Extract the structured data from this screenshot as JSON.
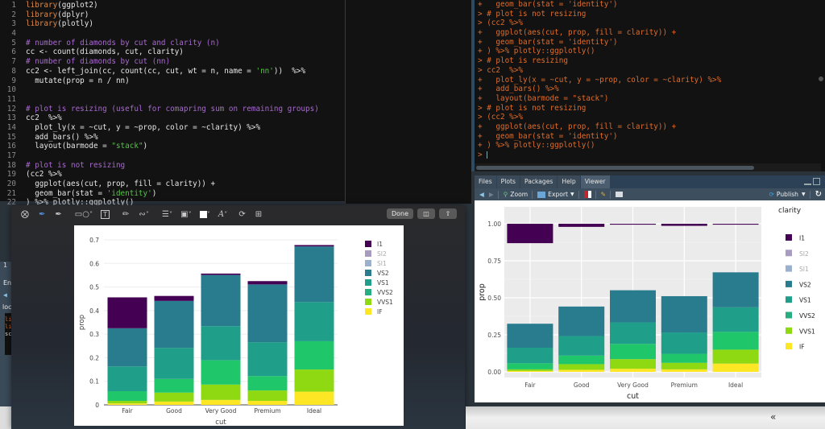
{
  "editor": {
    "lines": [
      {
        "n": "1",
        "parts": [
          [
            "fn",
            "library"
          ],
          [
            "",
            "(ggplot2)"
          ]
        ]
      },
      {
        "n": "2",
        "parts": [
          [
            "fn",
            "library"
          ],
          [
            "",
            "(dplyr)"
          ]
        ]
      },
      {
        "n": "3",
        "parts": [
          [
            "fn",
            "library"
          ],
          [
            "",
            "(plotly)"
          ]
        ]
      },
      {
        "n": "4",
        "parts": []
      },
      {
        "n": "5",
        "parts": [
          [
            "cm",
            "# number of diamonds by cut and clarity (n)"
          ]
        ]
      },
      {
        "n": "6",
        "parts": [
          [
            "",
            "cc <- count(diamonds, cut, clarity)"
          ]
        ]
      },
      {
        "n": "7",
        "parts": [
          [
            "cm",
            "# number of diamonds by cut (nn)"
          ]
        ]
      },
      {
        "n": "8",
        "parts": [
          [
            "",
            "cc2 <- left_join(cc, count(cc, cut, wt = n, name = "
          ],
          [
            "str",
            "'nn'"
          ],
          [
            "",
            "))  %>%"
          ]
        ]
      },
      {
        "n": "9",
        "parts": [
          [
            "",
            "  mutate(prop = n / nn)"
          ]
        ]
      },
      {
        "n": "10",
        "parts": []
      },
      {
        "n": "11",
        "parts": []
      },
      {
        "n": "12",
        "parts": [
          [
            "cm",
            "# plot is resizing (useful for comapring sum on remaining groups)"
          ]
        ]
      },
      {
        "n": "13",
        "parts": [
          [
            "",
            "cc2  %>%"
          ]
        ]
      },
      {
        "n": "14",
        "parts": [
          [
            "",
            "  plot_ly(x = ~cut, y = ~prop, color = ~clarity) %>%"
          ]
        ]
      },
      {
        "n": "15",
        "parts": [
          [
            "",
            "  add_bars() %>%"
          ]
        ]
      },
      {
        "n": "16",
        "parts": [
          [
            "",
            "  layout(barmode = "
          ],
          [
            "str",
            "\"stack\""
          ],
          [
            "",
            ")"
          ]
        ]
      },
      {
        "n": "17",
        "parts": []
      },
      {
        "n": "18",
        "parts": [
          [
            "cm",
            "# plot is not resizing"
          ]
        ]
      },
      {
        "n": "19",
        "parts": [
          [
            "",
            "(cc2 %>%"
          ]
        ]
      },
      {
        "n": "20",
        "parts": [
          [
            "",
            "  ggplot(aes(cut, prop, fill = clarity)) +"
          ]
        ]
      },
      {
        "n": "21",
        "parts": [
          [
            "",
            "  geom_bar(stat = "
          ],
          [
            "str",
            "'identity'"
          ],
          [
            "",
            ")"
          ]
        ]
      },
      {
        "n": "22",
        "parts": [
          [
            "",
            ") %>% plotly::ggplotly()"
          ]
        ]
      }
    ]
  },
  "console": {
    "lines": [
      "+   geom_bar(stat = 'identity')",
      "> # plot is not resizing",
      "> (cc2 %>%",
      "+   ggplot(aes(cut, prop, fill = clarity)) +",
      "+   geom_bar(stat = 'identity')",
      "+ ) %>% plotly::ggplotly()",
      "> # plot is resizing",
      "> cc2  %>%",
      "+   plot_ly(x = ~cut, y = ~prop, color = ~clarity) %>%",
      "+   add_bars() %>%",
      "+   layout(barmode = \"stack\")",
      "> # plot is not resizing",
      "> (cc2 %>%",
      "+   ggplot(aes(cut, prop, fill = clarity)) +",
      "+   geom_bar(stat = 'identity')",
      "+ ) %>% plotly::ggplotly()",
      "> "
    ]
  },
  "pane": {
    "tabs": [
      "Files",
      "Plots",
      "Packages",
      "Help",
      "Viewer"
    ],
    "active_tab": "Viewer",
    "toolbar": {
      "zoom_label": "Zoom",
      "export_label": "Export",
      "publish_label": "Publish"
    }
  },
  "left_pane_fragments": {
    "tab_number": "1",
    "env_label": "En",
    "loc_label": "loc",
    "code_frag": [
      "li",
      "li",
      "sc"
    ]
  },
  "markup": {
    "done_label": "Done"
  },
  "bottom_bar": {
    "chevron": "«"
  },
  "colors": {
    "I1": "#440154",
    "SI2": "#a89bc0",
    "SI1": "#9ab0cc",
    "VS2": "#287c8e",
    "VS1": "#1f9e89",
    "VVS2": "#27ad81",
    "VVS2_vis": "#1fc66a",
    "VVS1": "#8fd913",
    "IF": "#fde725"
  },
  "chart_data": [
    {
      "type": "bar",
      "title": "",
      "stacked": true,
      "renderer": "plotly (plot_ly add_bars, barmode stack)",
      "categories": [
        "Fair",
        "Good",
        "Very Good",
        "Premium",
        "Ideal"
      ],
      "xlabel": "cut",
      "ylabel": "prop",
      "ylim": [
        0,
        0.72
      ],
      "yticks": [
        "0",
        "0.1",
        "0.2",
        "0.3",
        "0.4",
        "0.5",
        "0.6",
        "0.7"
      ],
      "legend": [
        "I1",
        "SI2",
        "SI1",
        "VS2",
        "VS1",
        "VVS2",
        "VVS1",
        "IF"
      ],
      "legend_hidden": [
        "SI2",
        "SI1"
      ],
      "legend_position": "right",
      "grid": true,
      "series": [
        {
          "name": "IF",
          "values": [
            0.006,
            0.014,
            0.021,
            0.017,
            0.056
          ]
        },
        {
          "name": "VVS1",
          "values": [
            0.011,
            0.038,
            0.065,
            0.044,
            0.094
          ]
        },
        {
          "name": "VVS2",
          "values": [
            0.041,
            0.058,
            0.103,
            0.061,
            0.12
          ]
        },
        {
          "name": "VS1",
          "values": [
            0.105,
            0.132,
            0.145,
            0.144,
            0.166
          ]
        },
        {
          "name": "VS2",
          "values": [
            0.162,
            0.199,
            0.217,
            0.245,
            0.236
          ]
        },
        {
          "name": "I1",
          "values": [
            0.131,
            0.021,
            0.006,
            0.014,
            0.006
          ]
        }
      ]
    },
    {
      "type": "bar",
      "title": "",
      "stacked": true,
      "renderer": "ggplotly (ggplot geom_bar stat identity)",
      "categories": [
        "Fair",
        "Good",
        "Very Good",
        "Premium",
        "Ideal"
      ],
      "xlabel": "cut",
      "ylabel": "prop",
      "ylim": [
        -0.02,
        1.05
      ],
      "yticks": [
        "0.00",
        "0.25",
        "0.50",
        "0.75",
        "1.00"
      ],
      "legend_title": "clarity",
      "legend": [
        "I1",
        "SI2",
        "SI1",
        "VS2",
        "VS1",
        "VVS2",
        "VVS1",
        "IF"
      ],
      "legend_hidden": [
        "SI2",
        "SI1"
      ],
      "legend_position": "right",
      "grid": true,
      "series": [
        {
          "name": "IF",
          "values": [
            0.006,
            0.014,
            0.021,
            0.017,
            0.056
          ]
        },
        {
          "name": "VVS1",
          "values": [
            0.011,
            0.038,
            0.065,
            0.044,
            0.094
          ]
        },
        {
          "name": "VVS2",
          "values": [
            0.041,
            0.058,
            0.103,
            0.061,
            0.12
          ]
        },
        {
          "name": "VS1",
          "values": [
            0.105,
            0.132,
            0.145,
            0.144,
            0.166
          ]
        },
        {
          "name": "VS2",
          "values": [
            0.162,
            0.199,
            0.217,
            0.245,
            0.236
          ]
        },
        {
          "name": "I1",
          "values": [
            0.131,
            0.021,
            0.006,
            0.014,
            0.006
          ]
        }
      ],
      "note": "I1 segments drawn floating at top (0.87–1.00 for Fair, thin bars near 1.0 for others) because hidden SI2/SI1 gaps remain"
    }
  ]
}
